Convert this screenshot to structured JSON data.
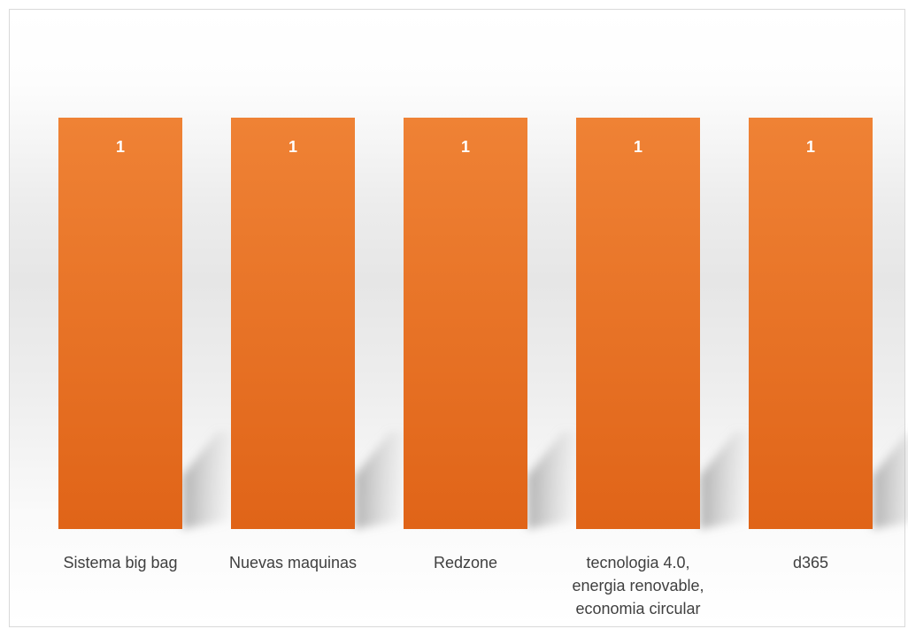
{
  "chart_data": {
    "type": "bar",
    "categories": [
      [
        "Sistema big bag"
      ],
      [
        "Nuevas maquinas"
      ],
      [
        "Redzone"
      ],
      [
        "tecnologia 4.0,",
        "energia renovable,",
        "economia circular"
      ],
      [
        "d365"
      ]
    ],
    "values": [
      1,
      1,
      1,
      1,
      1
    ],
    "data_labels": [
      "1",
      "1",
      "1",
      "1",
      "1"
    ],
    "ylim": [
      0,
      1
    ],
    "bar_color_top": "#ef8235",
    "bar_color_bottom": "#e06418",
    "label_color": "#ffffff",
    "axis_text_color": "#404040",
    "grid": false,
    "legend": "none"
  }
}
